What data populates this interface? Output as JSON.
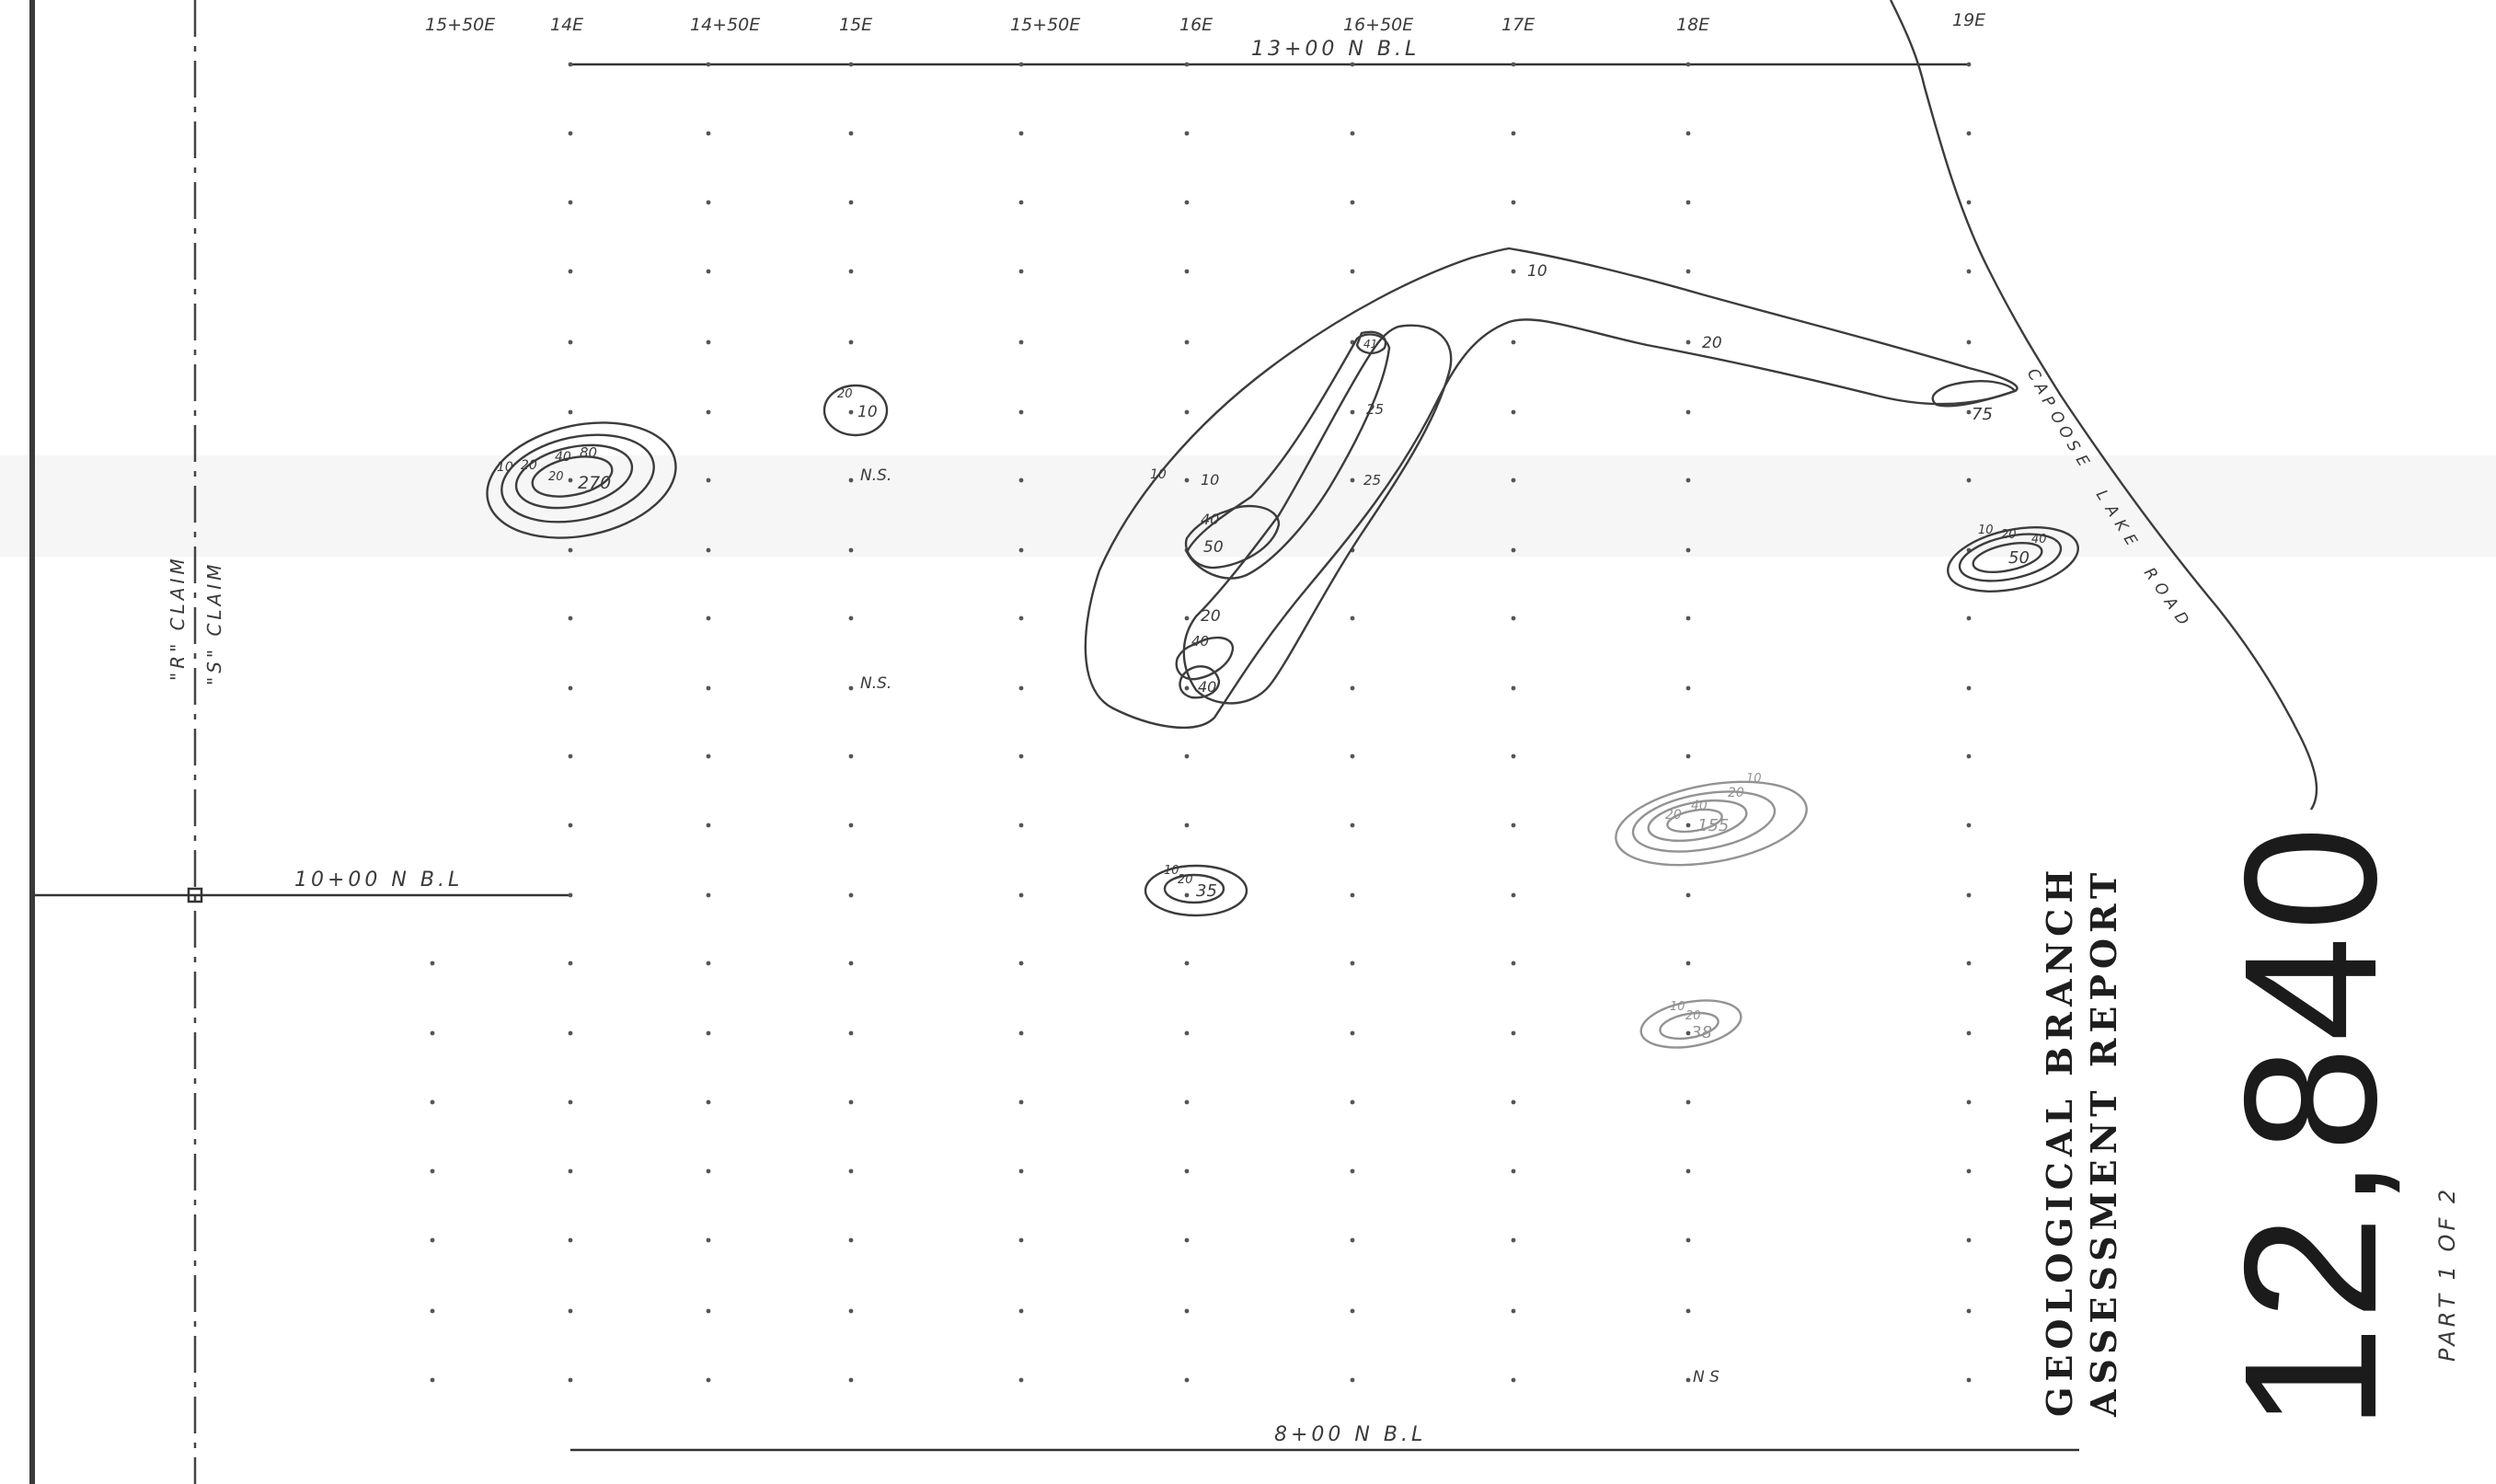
{
  "line_labels_top": [
    "15+50E",
    "14E",
    "14+50E",
    "15E",
    "15+50E",
    "16E",
    "16+50E",
    "17E",
    "18E",
    "19E"
  ],
  "baselines": {
    "top": "13+00 N B.L",
    "middle": "10+00 N B.L",
    "bottom": "8+00 N B.L"
  },
  "claims": {
    "r": "\"R\" CLAIM",
    "s": "\"S\" CLAIM"
  },
  "road": [
    "C",
    "A",
    "P",
    "O",
    "O",
    "S",
    "E",
    " ",
    "L",
    "A",
    "K",
    "E",
    " ",
    "R",
    "O",
    "A",
    "D"
  ],
  "no_sample": "N.S.",
  "no_sample_alt": "N S",
  "contour_labels": {
    "a": [
      "10",
      "20",
      "40",
      "80",
      "20",
      "270"
    ],
    "b": [
      "20",
      "10"
    ],
    "c": [
      "10",
      "20",
      "41",
      "25",
      "10",
      "10",
      "25",
      "40",
      "50",
      "20",
      "40",
      "40"
    ],
    "d": [
      "10",
      "10",
      "20",
      "75"
    ],
    "e": [
      "10",
      "20",
      "40",
      "50"
    ],
    "f": [
      "10",
      "20",
      "20",
      "40",
      "155"
    ],
    "g": [
      "10",
      "20",
      "35"
    ],
    "h": [
      "10",
      "20",
      "38"
    ]
  },
  "stamp": {
    "line1": "GEOLOGICAL BRANCH",
    "line2": "ASSESSMENT REPORT",
    "number": "12,840",
    "part": "PART 1 OF 2"
  },
  "colors": {
    "ink": "#2b2b2b",
    "paper": "#ffffff",
    "border": "#3a3a3a"
  }
}
